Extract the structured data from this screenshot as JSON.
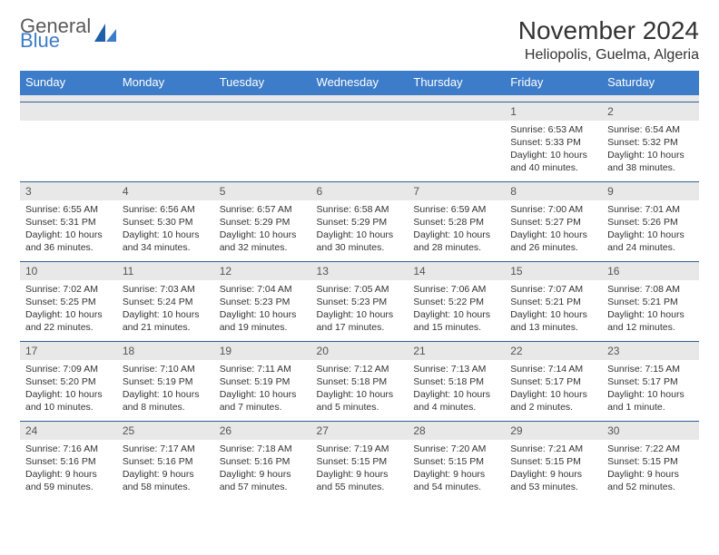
{
  "brand": {
    "line1": "General",
    "line2": "Blue"
  },
  "title": "November 2024",
  "location": "Heliopolis, Guelma, Algeria",
  "colors": {
    "header_bg": "#3d7cc9",
    "header_text": "#ffffff",
    "daynum_bg": "#e8e8e8",
    "row_border": "#2f5f9a",
    "body_text": "#333333",
    "logo_gray": "#5a5a5a",
    "logo_blue": "#3d7cc9"
  },
  "weekdays": [
    "Sunday",
    "Monday",
    "Tuesday",
    "Wednesday",
    "Thursday",
    "Friday",
    "Saturday"
  ],
  "weeks": [
    [
      {
        "day": "",
        "sunrise": "",
        "sunset": "",
        "daylight": ""
      },
      {
        "day": "",
        "sunrise": "",
        "sunset": "",
        "daylight": ""
      },
      {
        "day": "",
        "sunrise": "",
        "sunset": "",
        "daylight": ""
      },
      {
        "day": "",
        "sunrise": "",
        "sunset": "",
        "daylight": ""
      },
      {
        "day": "",
        "sunrise": "",
        "sunset": "",
        "daylight": ""
      },
      {
        "day": "1",
        "sunrise": "Sunrise: 6:53 AM",
        "sunset": "Sunset: 5:33 PM",
        "daylight": "Daylight: 10 hours and 40 minutes."
      },
      {
        "day": "2",
        "sunrise": "Sunrise: 6:54 AM",
        "sunset": "Sunset: 5:32 PM",
        "daylight": "Daylight: 10 hours and 38 minutes."
      }
    ],
    [
      {
        "day": "3",
        "sunrise": "Sunrise: 6:55 AM",
        "sunset": "Sunset: 5:31 PM",
        "daylight": "Daylight: 10 hours and 36 minutes."
      },
      {
        "day": "4",
        "sunrise": "Sunrise: 6:56 AM",
        "sunset": "Sunset: 5:30 PM",
        "daylight": "Daylight: 10 hours and 34 minutes."
      },
      {
        "day": "5",
        "sunrise": "Sunrise: 6:57 AM",
        "sunset": "Sunset: 5:29 PM",
        "daylight": "Daylight: 10 hours and 32 minutes."
      },
      {
        "day": "6",
        "sunrise": "Sunrise: 6:58 AM",
        "sunset": "Sunset: 5:29 PM",
        "daylight": "Daylight: 10 hours and 30 minutes."
      },
      {
        "day": "7",
        "sunrise": "Sunrise: 6:59 AM",
        "sunset": "Sunset: 5:28 PM",
        "daylight": "Daylight: 10 hours and 28 minutes."
      },
      {
        "day": "8",
        "sunrise": "Sunrise: 7:00 AM",
        "sunset": "Sunset: 5:27 PM",
        "daylight": "Daylight: 10 hours and 26 minutes."
      },
      {
        "day": "9",
        "sunrise": "Sunrise: 7:01 AM",
        "sunset": "Sunset: 5:26 PM",
        "daylight": "Daylight: 10 hours and 24 minutes."
      }
    ],
    [
      {
        "day": "10",
        "sunrise": "Sunrise: 7:02 AM",
        "sunset": "Sunset: 5:25 PM",
        "daylight": "Daylight: 10 hours and 22 minutes."
      },
      {
        "day": "11",
        "sunrise": "Sunrise: 7:03 AM",
        "sunset": "Sunset: 5:24 PM",
        "daylight": "Daylight: 10 hours and 21 minutes."
      },
      {
        "day": "12",
        "sunrise": "Sunrise: 7:04 AM",
        "sunset": "Sunset: 5:23 PM",
        "daylight": "Daylight: 10 hours and 19 minutes."
      },
      {
        "day": "13",
        "sunrise": "Sunrise: 7:05 AM",
        "sunset": "Sunset: 5:23 PM",
        "daylight": "Daylight: 10 hours and 17 minutes."
      },
      {
        "day": "14",
        "sunrise": "Sunrise: 7:06 AM",
        "sunset": "Sunset: 5:22 PM",
        "daylight": "Daylight: 10 hours and 15 minutes."
      },
      {
        "day": "15",
        "sunrise": "Sunrise: 7:07 AM",
        "sunset": "Sunset: 5:21 PM",
        "daylight": "Daylight: 10 hours and 13 minutes."
      },
      {
        "day": "16",
        "sunrise": "Sunrise: 7:08 AM",
        "sunset": "Sunset: 5:21 PM",
        "daylight": "Daylight: 10 hours and 12 minutes."
      }
    ],
    [
      {
        "day": "17",
        "sunrise": "Sunrise: 7:09 AM",
        "sunset": "Sunset: 5:20 PM",
        "daylight": "Daylight: 10 hours and 10 minutes."
      },
      {
        "day": "18",
        "sunrise": "Sunrise: 7:10 AM",
        "sunset": "Sunset: 5:19 PM",
        "daylight": "Daylight: 10 hours and 8 minutes."
      },
      {
        "day": "19",
        "sunrise": "Sunrise: 7:11 AM",
        "sunset": "Sunset: 5:19 PM",
        "daylight": "Daylight: 10 hours and 7 minutes."
      },
      {
        "day": "20",
        "sunrise": "Sunrise: 7:12 AM",
        "sunset": "Sunset: 5:18 PM",
        "daylight": "Daylight: 10 hours and 5 minutes."
      },
      {
        "day": "21",
        "sunrise": "Sunrise: 7:13 AM",
        "sunset": "Sunset: 5:18 PM",
        "daylight": "Daylight: 10 hours and 4 minutes."
      },
      {
        "day": "22",
        "sunrise": "Sunrise: 7:14 AM",
        "sunset": "Sunset: 5:17 PM",
        "daylight": "Daylight: 10 hours and 2 minutes."
      },
      {
        "day": "23",
        "sunrise": "Sunrise: 7:15 AM",
        "sunset": "Sunset: 5:17 PM",
        "daylight": "Daylight: 10 hours and 1 minute."
      }
    ],
    [
      {
        "day": "24",
        "sunrise": "Sunrise: 7:16 AM",
        "sunset": "Sunset: 5:16 PM",
        "daylight": "Daylight: 9 hours and 59 minutes."
      },
      {
        "day": "25",
        "sunrise": "Sunrise: 7:17 AM",
        "sunset": "Sunset: 5:16 PM",
        "daylight": "Daylight: 9 hours and 58 minutes."
      },
      {
        "day": "26",
        "sunrise": "Sunrise: 7:18 AM",
        "sunset": "Sunset: 5:16 PM",
        "daylight": "Daylight: 9 hours and 57 minutes."
      },
      {
        "day": "27",
        "sunrise": "Sunrise: 7:19 AM",
        "sunset": "Sunset: 5:15 PM",
        "daylight": "Daylight: 9 hours and 55 minutes."
      },
      {
        "day": "28",
        "sunrise": "Sunrise: 7:20 AM",
        "sunset": "Sunset: 5:15 PM",
        "daylight": "Daylight: 9 hours and 54 minutes."
      },
      {
        "day": "29",
        "sunrise": "Sunrise: 7:21 AM",
        "sunset": "Sunset: 5:15 PM",
        "daylight": "Daylight: 9 hours and 53 minutes."
      },
      {
        "day": "30",
        "sunrise": "Sunrise: 7:22 AM",
        "sunset": "Sunset: 5:15 PM",
        "daylight": "Daylight: 9 hours and 52 minutes."
      }
    ]
  ]
}
